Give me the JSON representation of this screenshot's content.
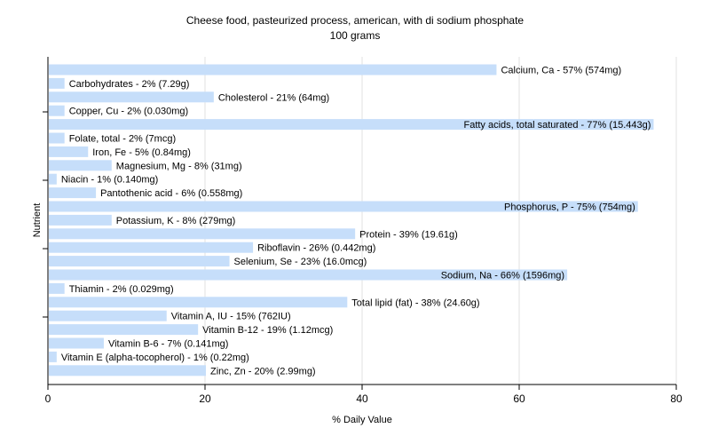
{
  "chart_data": {
    "type": "bar",
    "orientation": "horizontal",
    "title": "Cheese food, pasteurized process, american, with di sodium phosphate",
    "subtitle": "100 grams",
    "xlabel": "% Daily Value",
    "ylabel": "Nutrient",
    "xlim": [
      0,
      80
    ],
    "xticks": [
      0,
      20,
      40,
      60,
      80
    ],
    "grid": true,
    "bar_color": "#c6defa",
    "categories": [
      "Calcium, Ca",
      "Carbohydrates",
      "Cholesterol",
      "Copper, Cu",
      "Fatty acids, total saturated",
      "Folate, total",
      "Iron, Fe",
      "Magnesium, Mg",
      "Niacin",
      "Pantothenic acid",
      "Phosphorus, P",
      "Potassium, K",
      "Protein",
      "Riboflavin",
      "Selenium, Se",
      "Sodium, Na",
      "Thiamin",
      "Total lipid (fat)",
      "Vitamin A, IU",
      "Vitamin B-12",
      "Vitamin B-6",
      "Vitamin E (alpha-tocopherol)",
      "Zinc, Zn"
    ],
    "values": [
      57,
      2,
      21,
      2,
      77,
      2,
      5,
      8,
      1,
      6,
      75,
      8,
      39,
      26,
      23,
      66,
      2,
      38,
      15,
      19,
      7,
      1,
      20
    ],
    "labels": [
      "Calcium, Ca - 57% (574mg)",
      "Carbohydrates - 2% (7.29g)",
      "Cholesterol - 21% (64mg)",
      "Copper, Cu - 2% (0.030mg)",
      "Fatty acids, total saturated - 77% (15.443g)",
      "Folate, total - 2% (7mcg)",
      "Iron, Fe - 5% (0.84mg)",
      "Magnesium, Mg - 8% (31mg)",
      "Niacin - 1% (0.140mg)",
      "Pantothenic acid - 6% (0.558mg)",
      "Phosphorus, P - 75% (754mg)",
      "Potassium, K - 8% (279mg)",
      "Protein - 39% (19.61g)",
      "Riboflavin - 26% (0.442mg)",
      "Selenium, Se - 23% (16.0mcg)",
      "Sodium, Na - 66% (1596mg)",
      "Thiamin - 2% (0.029mg)",
      "Total lipid (fat) - 38% (24.60g)",
      "Vitamin A, IU - 15% (762IU)",
      "Vitamin B-12 - 19% (1.12mcg)",
      "Vitamin B-6 - 7% (0.141mg)",
      "Vitamin E (alpha-tocopherol) - 1% (0.22mg)",
      "Zinc, Zn - 20% (2.99mg)"
    ]
  }
}
